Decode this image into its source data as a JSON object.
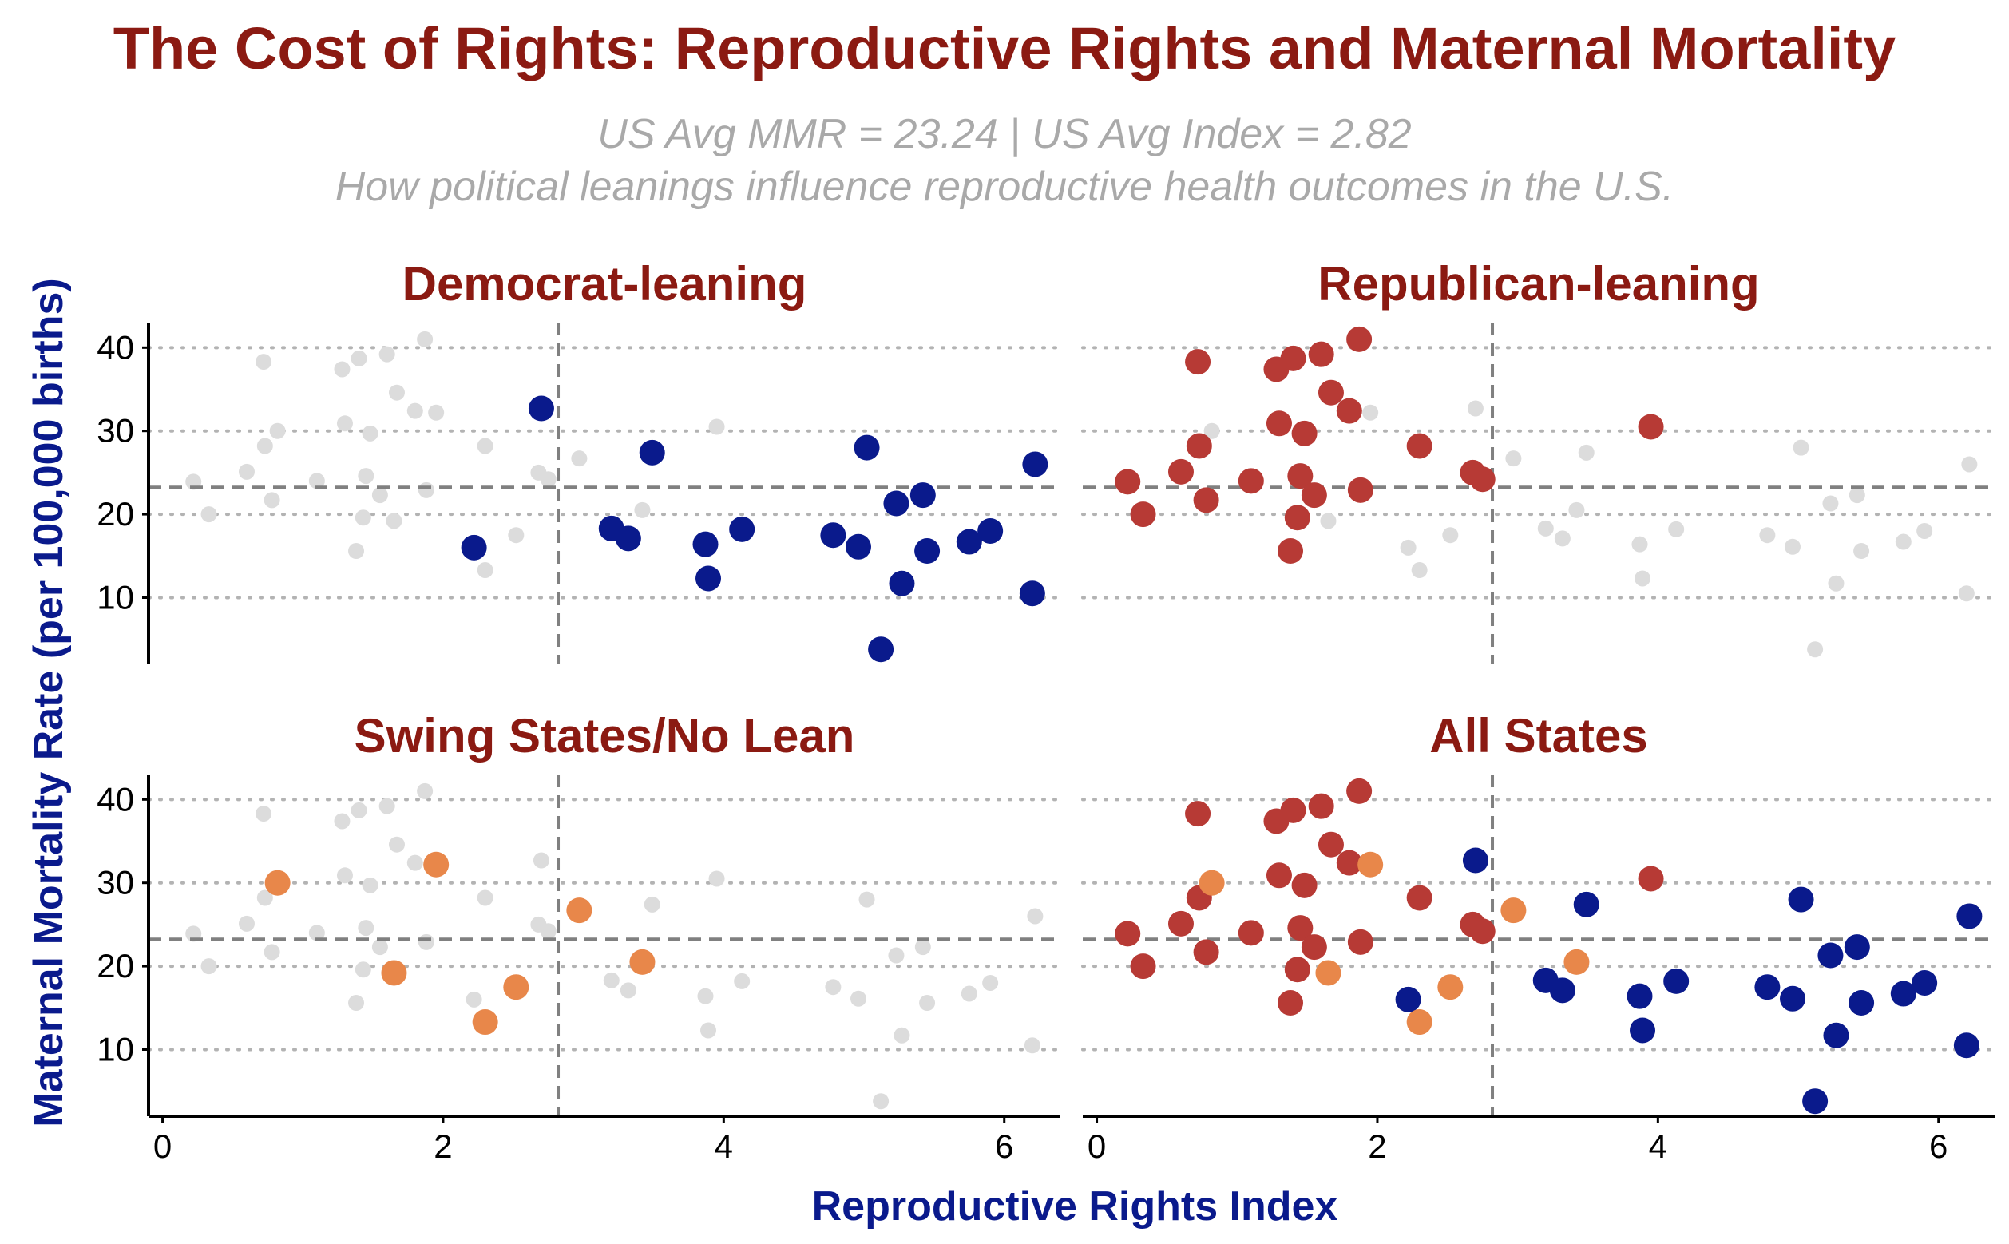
{
  "title": "The Cost of Rights: Reproductive Rights and Maternal Mortality",
  "subtitle_line1": "US Avg MMR = 23.24 | US Avg Index = 2.82",
  "subtitle_line2": "How political leanings influence reproductive health outcomes in the U.S.",
  "chart_data": {
    "type": "scatter",
    "xlabel": "Reproductive Rights Index",
    "ylabel": "Maternal Mortality Rate (per 100,000 births)",
    "xlim": [
      -0.1,
      6.4
    ],
    "ylim": [
      2,
      43
    ],
    "x_ticks": [
      0,
      2,
      4,
      6
    ],
    "y_ticks": [
      10,
      20,
      30,
      40
    ],
    "reference_lines": {
      "us_avg_index": 2.82,
      "us_avg_mmr": 23.24
    },
    "grid": "y-major-dotted",
    "colors": {
      "Democrat-leaning": "#0a1a8c",
      "Republican-leaning": "#b73a35",
      "Swing States/No Lean": "#e8874a",
      "background": "#dcdcdc",
      "reference_line": "#808080",
      "title": "#8b1a12",
      "axis_title": "#0a1a8c"
    },
    "panels": [
      {
        "title": "Democrat-leaning",
        "filter": "Democrat-leaning"
      },
      {
        "title": "Republican-leaning",
        "filter": "Republican-leaning"
      },
      {
        "title": "Swing States/No Lean",
        "filter": "Swing States/No Lean"
      },
      {
        "title": "All States",
        "filter": "all"
      }
    ],
    "series": [
      {
        "name": "Democrat-leaning",
        "points": [
          [
            2.22,
            16.0
          ],
          [
            2.7,
            32.7
          ],
          [
            3.2,
            18.3
          ],
          [
            3.32,
            17.1
          ],
          [
            3.49,
            27.4
          ],
          [
            3.87,
            16.4
          ],
          [
            3.89,
            12.3
          ],
          [
            4.13,
            18.2
          ],
          [
            4.78,
            17.5
          ],
          [
            4.96,
            16.1
          ],
          [
            5.02,
            28.0
          ],
          [
            5.12,
            3.8
          ],
          [
            5.23,
            21.3
          ],
          [
            5.27,
            11.7
          ],
          [
            5.42,
            22.3
          ],
          [
            5.45,
            15.6
          ],
          [
            5.75,
            16.7
          ],
          [
            5.9,
            18.0
          ],
          [
            6.2,
            10.5
          ],
          [
            6.22,
            26.0
          ]
        ]
      },
      {
        "name": "Republican-leaning",
        "points": [
          [
            0.22,
            23.9
          ],
          [
            0.33,
            20.0
          ],
          [
            0.6,
            25.1
          ],
          [
            0.72,
            38.3
          ],
          [
            0.73,
            28.2
          ],
          [
            0.78,
            21.7
          ],
          [
            1.1,
            24.0
          ],
          [
            1.28,
            37.4
          ],
          [
            1.3,
            30.9
          ],
          [
            1.38,
            15.6
          ],
          [
            1.4,
            38.7
          ],
          [
            1.43,
            19.6
          ],
          [
            1.45,
            24.6
          ],
          [
            1.48,
            29.7
          ],
          [
            1.55,
            22.3
          ],
          [
            1.6,
            39.2
          ],
          [
            1.67,
            34.6
          ],
          [
            1.8,
            32.4
          ],
          [
            1.87,
            41.0
          ],
          [
            1.88,
            22.9
          ],
          [
            2.3,
            28.2
          ],
          [
            2.68,
            25.0
          ],
          [
            2.75,
            24.2
          ],
          [
            3.95,
            30.5
          ]
        ]
      },
      {
        "name": "Swing States/No Lean",
        "points": [
          [
            0.82,
            30.0
          ],
          [
            1.65,
            19.2
          ],
          [
            1.95,
            32.2
          ],
          [
            2.3,
            13.3
          ],
          [
            2.52,
            17.5
          ],
          [
            2.97,
            26.7
          ],
          [
            3.42,
            20.5
          ]
        ]
      }
    ]
  }
}
